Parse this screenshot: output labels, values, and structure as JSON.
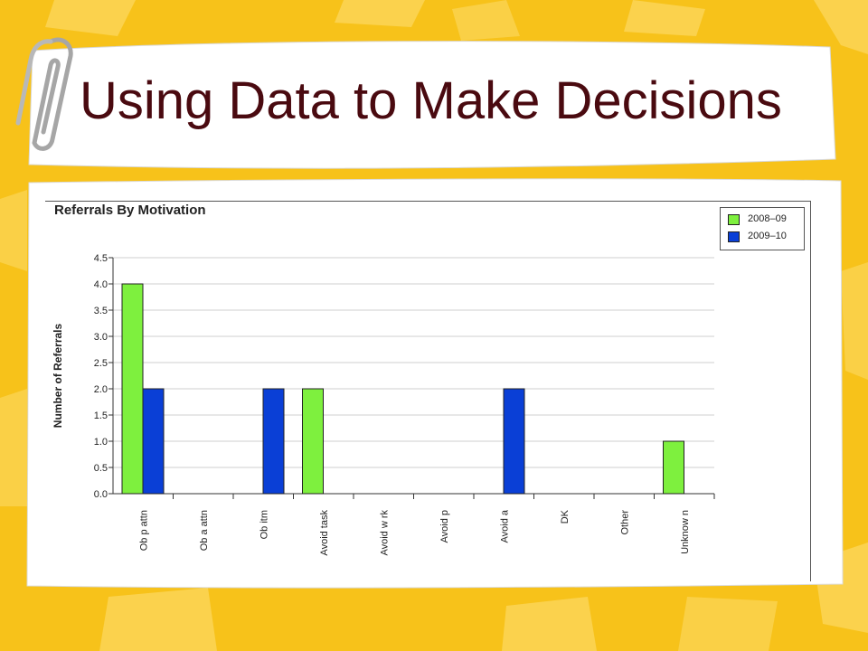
{
  "slide": {
    "title": "Using Data to Make Decisions"
  },
  "colors": {
    "background": "#f7c21a",
    "title_text": "#4a0a10",
    "series_2008": "#7ef03e",
    "series_2009": "#0a3fd6"
  },
  "icons": [
    "paperclip-icon"
  ],
  "chart_data": {
    "type": "bar",
    "title": "Referrals By Motivation",
    "ylabel": "Number of Referrals",
    "xlabel": "",
    "ylim": [
      0,
      4.5
    ],
    "yticks": [
      "0.0",
      "0.5",
      "1.0",
      "1.5",
      "2.0",
      "2.5",
      "3.0",
      "3.5",
      "4.0",
      "4.5"
    ],
    "grid": true,
    "legend_position": "top-right",
    "categories": [
      "Ob p attn",
      "Ob a attn",
      "Ob itm",
      "Avoid task",
      "Avoid w rk",
      "Avoid p",
      "Avoid a",
      "DK",
      "Other",
      "Unknow n"
    ],
    "series": [
      {
        "name": "2008–09",
        "color": "#7ef03e",
        "values": [
          4,
          0,
          0,
          2,
          0,
          0,
          0,
          0,
          0,
          1
        ]
      },
      {
        "name": "2009–10",
        "color": "#0a3fd6",
        "values": [
          2,
          0,
          2,
          0,
          0,
          0,
          2,
          0,
          0,
          0
        ]
      }
    ]
  }
}
